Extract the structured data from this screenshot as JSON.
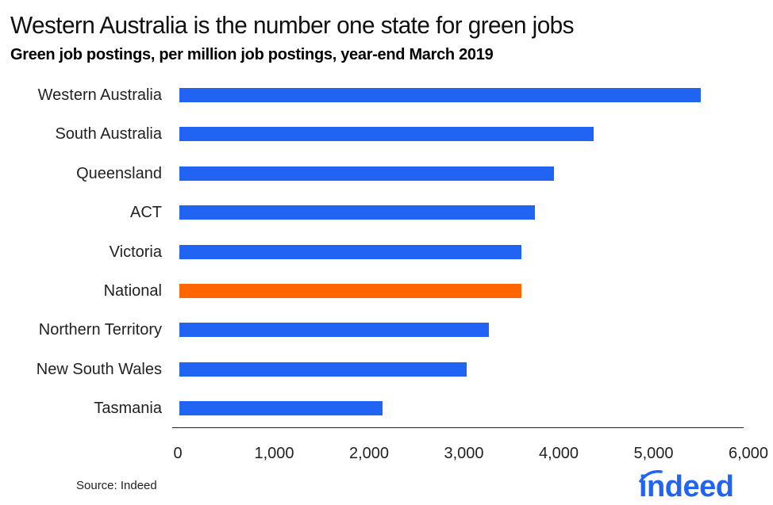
{
  "header": {
    "title": "Western Australia is the number one state for green jobs",
    "subtitle": "Green job postings, per million job postings, year-end March 2019"
  },
  "footer": {
    "source": "Source: Indeed",
    "logo_text": "indeed"
  },
  "colors": {
    "state_bar": "#2164F3",
    "national_bar": "#FF6600",
    "logo": "#2164F3",
    "axis": "#222222"
  },
  "chart_data": {
    "type": "bar",
    "orientation": "horizontal",
    "title": "Western Australia is the number one state for green jobs",
    "subtitle": "Green job postings, per million job postings, year-end March 2019",
    "xlabel": "",
    "ylabel": "",
    "categories": [
      "Western Australia",
      "South Australia",
      "Queensland",
      "ACT",
      "Victoria",
      "National",
      "Northern Territory",
      "New South Wales",
      "Tasmania"
    ],
    "values": [
      5500,
      4370,
      3950,
      3750,
      3610,
      3610,
      3260,
      3030,
      2140
    ],
    "highlight": {
      "category": "National",
      "color": "#FF6600"
    },
    "xlim": [
      0,
      6000
    ],
    "x_ticks": [
      "0",
      "1,000",
      "2,000",
      "3,000",
      "4,000",
      "5,000",
      "6,000"
    ],
    "grid": false,
    "legend": null,
    "source": "Source: Indeed"
  }
}
